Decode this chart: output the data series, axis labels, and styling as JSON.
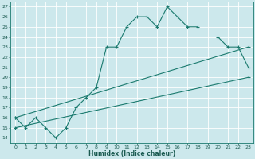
{
  "title": "",
  "xlabel": "Humidex (Indice chaleur)",
  "ylabel": "",
  "bg_color": "#cce8ec",
  "grid_color": "#b0d4d8",
  "line_color": "#1a7a6e",
  "xlim": [
    -0.5,
    23.5
  ],
  "ylim": [
    13.5,
    27.5
  ],
  "xticks": [
    0,
    1,
    2,
    3,
    4,
    5,
    6,
    7,
    8,
    9,
    10,
    11,
    12,
    13,
    14,
    15,
    16,
    17,
    18,
    19,
    20,
    21,
    22,
    23
  ],
  "yticks": [
    14,
    15,
    16,
    17,
    18,
    19,
    20,
    21,
    22,
    23,
    24,
    25,
    26,
    27
  ],
  "line1_x": [
    0,
    1,
    2,
    3,
    4,
    5,
    6,
    7,
    8,
    9,
    10,
    11,
    12,
    13,
    14,
    15,
    16,
    17,
    18,
    19,
    20,
    21,
    22,
    23
  ],
  "line1_y": [
    16,
    15,
    16,
    15,
    14,
    15,
    17,
    18,
    19,
    23,
    23,
    25,
    26,
    26,
    25,
    27,
    26,
    25,
    25,
    null,
    24,
    23,
    23,
    21
  ],
  "line2_x": [
    0,
    23
  ],
  "line2_y": [
    15,
    20
  ],
  "line3_x": [
    0,
    23
  ],
  "line3_y": [
    16,
    23
  ]
}
